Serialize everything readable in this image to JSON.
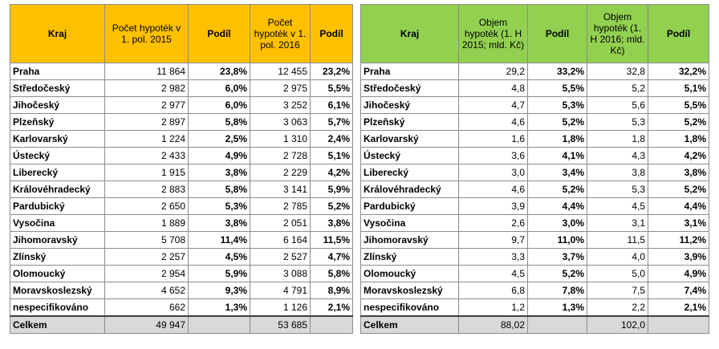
{
  "table1": {
    "headers": [
      "Kraj",
      "Počet hypoték v 1. pol. 2015",
      "Podíl",
      "Počet hypoték v 1. pol. 2016",
      "Podíl"
    ],
    "rows": [
      [
        "Praha",
        "11 864",
        "23,8%",
        "12 455",
        "23,2%"
      ],
      [
        "Středočeský",
        "2 982",
        "6,0%",
        "2 975",
        "5,5%"
      ],
      [
        "Jihočeský",
        "2 977",
        "6,0%",
        "3 252",
        "6,1%"
      ],
      [
        "Plzeňský",
        "2 897",
        "5,8%",
        "3 063",
        "5,7%"
      ],
      [
        "Karlovarský",
        "1 224",
        "2,5%",
        "1 310",
        "2,4%"
      ],
      [
        "Ústecký",
        "2 433",
        "4,9%",
        "2 728",
        "5,1%"
      ],
      [
        "Liberecký",
        "1 915",
        "3,8%",
        "2 229",
        "4,2%"
      ],
      [
        "Královéhradecký",
        "2 883",
        "5,8%",
        "3 141",
        "5,9%"
      ],
      [
        "Pardubický",
        "2 650",
        "5,3%",
        "2 785",
        "5,2%"
      ],
      [
        "Vysočina",
        "1 889",
        "3,8%",
        "2 051",
        "3,8%"
      ],
      [
        "Jihomoravský",
        "5 708",
        "11,4%",
        "6 164",
        "11,5%"
      ],
      [
        "Zlínský",
        "2 257",
        "4,5%",
        "2 527",
        "4,7%"
      ],
      [
        "Olomoucký",
        "2 954",
        "5,9%",
        "3 088",
        "5,8%"
      ],
      [
        "Moravskoslezský",
        "4 652",
        "9,3%",
        "4 791",
        "8,9%"
      ],
      [
        "nespecifikováno",
        "662",
        "1,3%",
        "1 126",
        "2,1%"
      ]
    ],
    "total": [
      "Celkem",
      "49 947",
      "",
      "53 685",
      ""
    ]
  },
  "table2": {
    "headers": [
      "Kraj",
      "Objem hypoték (1. H 2015; mld. Kč)",
      "Podíl",
      "Objem hypoték (1. H 2016; mld. Kč)",
      "Podíl"
    ],
    "rows": [
      [
        "Praha",
        "29,2",
        "33,2%",
        "32,8",
        "32,2%"
      ],
      [
        "Středočeský",
        "4,8",
        "5,5%",
        "5,2",
        "5,1%"
      ],
      [
        "Jihočeský",
        "4,7",
        "5,3%",
        "5,6",
        "5,5%"
      ],
      [
        "Plzeňský",
        "4,6",
        "5,2%",
        "5,3",
        "5,2%"
      ],
      [
        "Karlovarský",
        "1,6",
        "1,8%",
        "1,8",
        "1,8%"
      ],
      [
        "Ústecký",
        "3,6",
        "4,1%",
        "4,3",
        "4,2%"
      ],
      [
        "Liberecký",
        "3,0",
        "3,4%",
        "3,8",
        "3,8%"
      ],
      [
        "Královéhradecký",
        "4,6",
        "5,2%",
        "5,3",
        "5,2%"
      ],
      [
        "Pardubický",
        "3,9",
        "4,4%",
        "4,5",
        "4,4%"
      ],
      [
        "Vysočina",
        "2,6",
        "3,0%",
        "3,1",
        "3,1%"
      ],
      [
        "Jihomoravský",
        "9,7",
        "11,0%",
        "11,5",
        "11,2%"
      ],
      [
        "Zlínský",
        "3,3",
        "3,7%",
        "4,0",
        "3,9%"
      ],
      [
        "Olomoucký",
        "4,5",
        "5,2%",
        "5,0",
        "4,9%"
      ],
      [
        "Moravskoslezský",
        "6,8",
        "7,8%",
        "7,5",
        "7,4%"
      ],
      [
        "nespecifikováno",
        "1,2",
        "1,3%",
        "2,2",
        "2,1%"
      ]
    ],
    "total": [
      "Celkem",
      "88,02",
      "",
      "102,0",
      ""
    ]
  }
}
